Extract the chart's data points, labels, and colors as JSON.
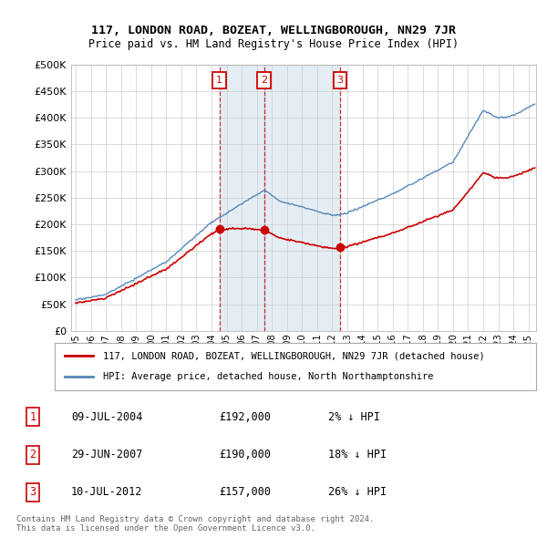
{
  "title1": "117, LONDON ROAD, BOZEAT, WELLINGBOROUGH, NN29 7JR",
  "title2": "Price paid vs. HM Land Registry's House Price Index (HPI)",
  "ylabel_ticks": [
    "£0",
    "£50K",
    "£100K",
    "£150K",
    "£200K",
    "£250K",
    "£300K",
    "£350K",
    "£400K",
    "£450K",
    "£500K"
  ],
  "ytick_values": [
    0,
    50000,
    100000,
    150000,
    200000,
    250000,
    300000,
    350000,
    400000,
    450000,
    500000
  ],
  "xlim_start": 1994.7,
  "xlim_end": 2025.5,
  "ylim": [
    0,
    500000
  ],
  "legend_line1": "117, LONDON ROAD, BOZEAT, WELLINGBOROUGH, NN29 7JR (detached house)",
  "legend_line2": "HPI: Average price, detached house, North Northamptonshire",
  "sale1_date": "09-JUL-2004",
  "sale1_price": 192000,
  "sale1_hpi": "2% ↓ HPI",
  "sale1_year": 2004.52,
  "sale2_date": "29-JUN-2007",
  "sale2_price": 190000,
  "sale2_hpi": "18% ↓ HPI",
  "sale2_year": 2007.49,
  "sale3_date": "10-JUL-2012",
  "sale3_price": 157000,
  "sale3_hpi": "26% ↓ HPI",
  "sale3_year": 2012.52,
  "footer": "Contains HM Land Registry data © Crown copyright and database right 2024.\nThis data is licensed under the Open Government Licence v3.0.",
  "red_color": "#cc0000",
  "blue_color": "#5588bb",
  "blue_fill": "#ddeeff",
  "bg_color": "#ffffff",
  "grid_color": "#cccccc",
  "shade_color": "#e8f0f8"
}
